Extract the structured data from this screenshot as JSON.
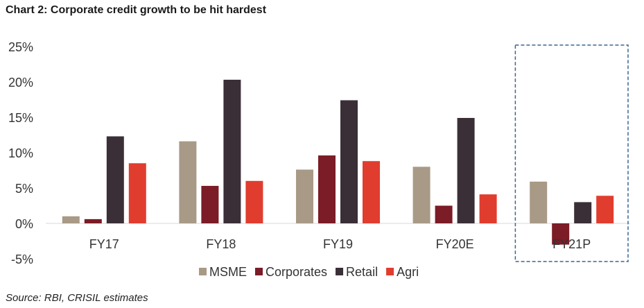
{
  "title": "Chart 2: Corporate credit growth to be hit hardest",
  "source": "Source: RBI, CRISIL estimates",
  "colors": {
    "MSME": "#a89a86",
    "Corporates": "#7b1c26",
    "Retail": "#3a2f37",
    "Agri": "#e03d2f",
    "gridline": "#d9d9d9",
    "highlight_box": "#3a6490"
  },
  "chart_data": {
    "type": "bar",
    "title": "Chart 2: Corporate credit growth to be hit hardest",
    "categories": [
      "FY17",
      "FY18",
      "FY19",
      "FY20E",
      "FY21P"
    ],
    "series": [
      {
        "name": "MSME",
        "values": [
          1.0,
          11.6,
          7.6,
          8.0,
          5.9
        ]
      },
      {
        "name": "Corporates",
        "values": [
          0.6,
          5.3,
          9.6,
          2.5,
          -3.0
        ]
      },
      {
        "name": "Retail",
        "values": [
          12.3,
          20.3,
          17.4,
          14.9,
          3.0
        ]
      },
      {
        "name": "Agri",
        "values": [
          8.5,
          6.0,
          8.8,
          4.1,
          3.9
        ]
      }
    ],
    "y_ticks": [
      "25%",
      "20%",
      "15%",
      "10%",
      "5%",
      "0%",
      "-5%"
    ],
    "ylim": [
      -5,
      25
    ],
    "legend_position": "bottom",
    "highlighted_category": "FY21P",
    "grid": false
  }
}
